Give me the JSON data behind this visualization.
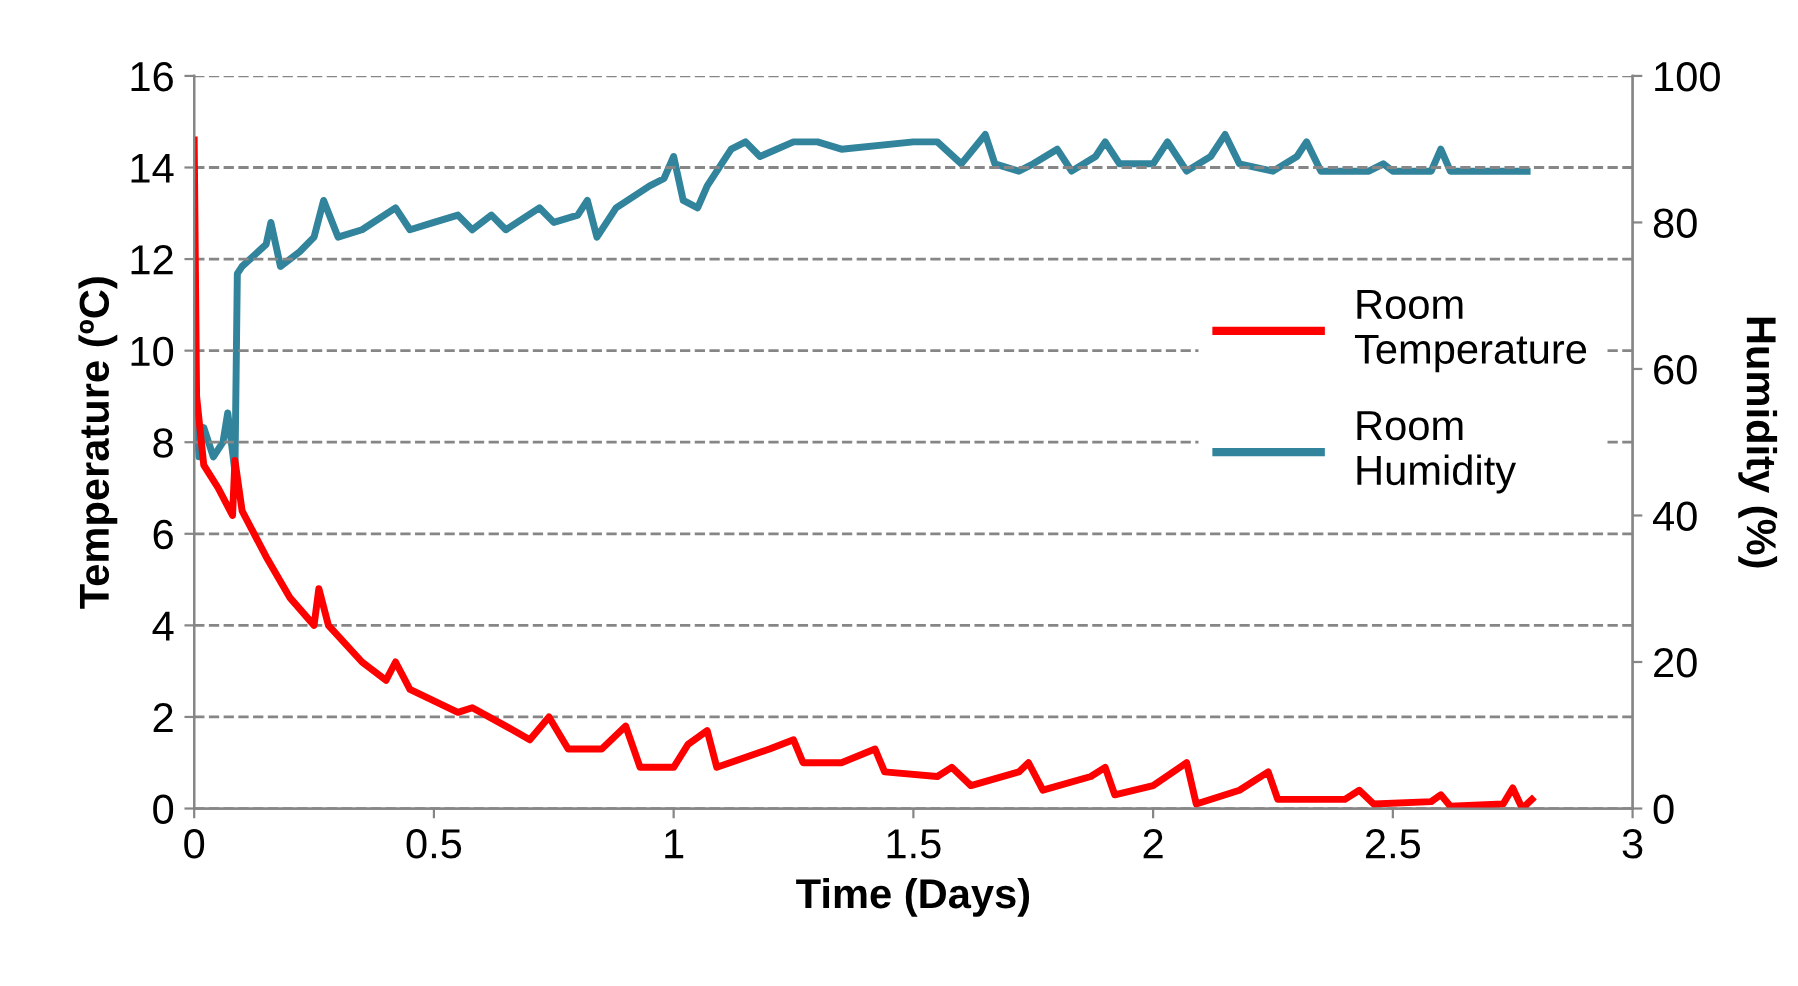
{
  "chart_data": {
    "type": "line",
    "xlabel": "Time (Days)",
    "ylabel": "Temperature (ºC)",
    "y2label": "Humidity (%)",
    "xlim": [
      0,
      3
    ],
    "xticks": [
      0,
      0.5,
      1,
      1.5,
      2,
      2.5,
      3
    ],
    "ylim": [
      0,
      16
    ],
    "yticks": [
      0,
      2,
      4,
      6,
      8,
      10,
      12,
      14,
      16
    ],
    "y2lim": [
      0,
      100
    ],
    "y2ticks": [
      0,
      20,
      40,
      60,
      80,
      100
    ],
    "grid": "y",
    "legend": "right",
    "line_style": "solid",
    "marker": "none",
    "series": [
      {
        "name": "Room Temperature",
        "color": "#ff0000",
        "x": [
          0,
          0.005,
          0.02,
          0.05,
          0.08,
          0.085,
          0.1,
          0.15,
          0.2,
          0.25,
          0.26,
          0.28,
          0.35,
          0.4,
          0.42,
          0.45,
          0.55,
          0.58,
          0.65,
          0.7,
          0.74,
          0.78,
          0.85,
          0.9,
          0.93,
          1.0,
          1.03,
          1.07,
          1.09,
          1.2,
          1.25,
          1.27,
          1.35,
          1.42,
          1.44,
          1.55,
          1.58,
          1.62,
          1.72,
          1.74,
          1.77,
          1.87,
          1.9,
          1.92,
          2.0,
          2.07,
          2.09,
          2.18,
          2.24,
          2.26,
          2.4,
          2.43,
          2.46,
          2.58,
          2.6,
          2.62,
          2.73,
          2.75,
          2.77,
          2.79
        ],
        "values": [
          14.6,
          9.0,
          7.5,
          7.0,
          6.4,
          7.6,
          6.5,
          5.5,
          4.6,
          4.0,
          4.8,
          4.0,
          3.2,
          2.8,
          3.2,
          2.6,
          2.1,
          2.2,
          1.8,
          1.5,
          2.0,
          1.3,
          1.3,
          1.8,
          0.9,
          0.9,
          1.4,
          1.7,
          0.9,
          1.3,
          1.5,
          1.0,
          1.0,
          1.3,
          0.8,
          0.7,
          0.9,
          0.5,
          0.8,
          1.0,
          0.4,
          0.7,
          0.9,
          0.3,
          0.5,
          1.0,
          0.1,
          0.4,
          0.8,
          0.2,
          0.2,
          0.4,
          0.1,
          0.15,
          0.3,
          0.05,
          0.1,
          0.45,
          0.0,
          0.2
        ]
      },
      {
        "name": "Room Humidity",
        "color": "#31849b",
        "axis": "y2",
        "x": [
          0,
          0.01,
          0.02,
          0.04,
          0.06,
          0.07,
          0.085,
          0.09,
          0.1,
          0.15,
          0.16,
          0.18,
          0.22,
          0.25,
          0.27,
          0.3,
          0.35,
          0.42,
          0.45,
          0.5,
          0.55,
          0.58,
          0.62,
          0.65,
          0.72,
          0.75,
          0.8,
          0.82,
          0.84,
          0.88,
          0.95,
          0.98,
          1.0,
          1.02,
          1.05,
          1.07,
          1.12,
          1.15,
          1.18,
          1.25,
          1.3,
          1.35,
          1.5,
          1.55,
          1.6,
          1.65,
          1.67,
          1.72,
          1.75,
          1.8,
          1.83,
          1.88,
          1.9,
          1.93,
          2.0,
          2.03,
          2.07,
          2.12,
          2.15,
          2.18,
          2.25,
          2.3,
          2.32,
          2.35,
          2.45,
          2.48,
          2.5,
          2.58,
          2.6,
          2.62,
          2.7,
          2.75,
          2.78
        ],
        "values": [
          58,
          48,
          52,
          48,
          50,
          54,
          46,
          73,
          74,
          77,
          80,
          74,
          76,
          78,
          83,
          78,
          79,
          82,
          79,
          80,
          81,
          79,
          81,
          79,
          82,
          80,
          81,
          83,
          78,
          82,
          85,
          86,
          89,
          83,
          82,
          85,
          90,
          91,
          89,
          91,
          91,
          90,
          91,
          91,
          88,
          92,
          88,
          87,
          88,
          90,
          87,
          89,
          91,
          88,
          88,
          91,
          87,
          89,
          92,
          88,
          87,
          89,
          91,
          87,
          87,
          88,
          87,
          87,
          90,
          87,
          87,
          87,
          87
        ]
      }
    ]
  }
}
